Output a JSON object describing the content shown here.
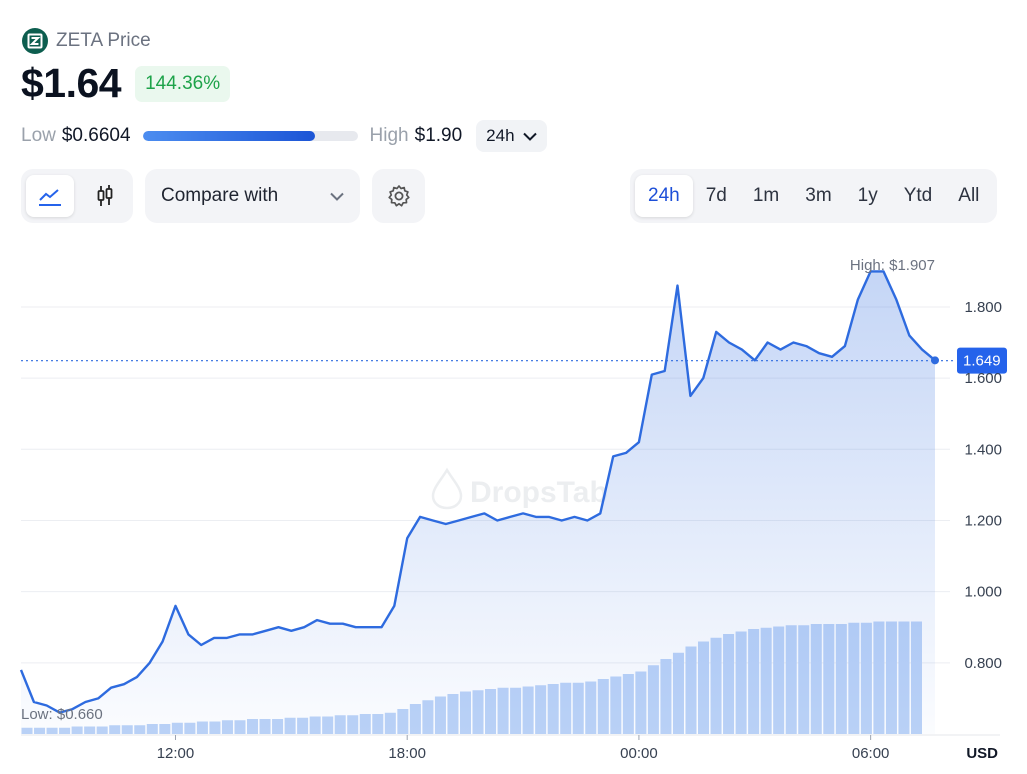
{
  "header": {
    "coin_name": "ZETA Price",
    "price": "$1.64",
    "change": "144.36%",
    "low_label": "Low",
    "low_value": "$0.6604",
    "high_label": "High",
    "high_value": "$1.90",
    "range_position": 0.8,
    "range_period": "24h"
  },
  "toolbar": {
    "compare_label": "Compare with",
    "ranges": [
      "24h",
      "7d",
      "1m",
      "3m",
      "1y",
      "Ytd",
      "All"
    ],
    "active_range": "24h"
  },
  "colors": {
    "accent": "#2563eb",
    "line": "#2e6bdf",
    "positive": "#1ea34a",
    "logo": "#0d5e4f"
  },
  "chart_data": {
    "type": "line",
    "title": "",
    "xlabel": "",
    "ylabel": "USD",
    "watermark": "DropsTab",
    "x_ticks": [
      "12:00",
      "18:00",
      "00:00",
      "06:00"
    ],
    "y_ticks": [
      "0.800",
      "1.000",
      "1.200",
      "1.400",
      "1.600",
      "1.800"
    ],
    "ylim": [
      0.6,
      1.96
    ],
    "current_value": "1.649",
    "high_label": "High: $1.907",
    "low_label": "Low: $0.660",
    "series": [
      {
        "name": "",
        "x": [
          "08:00",
          "08:20",
          "08:40",
          "09:00",
          "09:20",
          "09:40",
          "10:00",
          "10:20",
          "10:40",
          "11:00",
          "11:20",
          "11:40",
          "12:00",
          "12:20",
          "12:40",
          "13:00",
          "13:20",
          "13:40",
          "14:00",
          "14:20",
          "14:40",
          "15:00",
          "15:20",
          "15:40",
          "16:00",
          "16:20",
          "16:40",
          "17:00",
          "17:20",
          "17:40",
          "18:00",
          "18:20",
          "18:40",
          "19:00",
          "19:20",
          "19:40",
          "20:00",
          "20:20",
          "20:40",
          "21:00",
          "21:20",
          "21:40",
          "22:00",
          "22:20",
          "22:40",
          "23:00",
          "23:20",
          "23:40",
          "00:00",
          "00:20",
          "00:40",
          "01:00",
          "01:20",
          "01:40",
          "02:00",
          "02:20",
          "02:40",
          "03:00",
          "03:20",
          "03:40",
          "04:00",
          "04:20",
          "04:40",
          "05:00",
          "05:20",
          "05:40",
          "06:00",
          "06:20",
          "06:40",
          "07:00",
          "07:20",
          "07:40"
        ],
        "values": [
          0.78,
          0.69,
          0.68,
          0.66,
          0.67,
          0.69,
          0.7,
          0.73,
          0.74,
          0.76,
          0.8,
          0.86,
          0.96,
          0.88,
          0.85,
          0.87,
          0.87,
          0.88,
          0.88,
          0.89,
          0.9,
          0.89,
          0.9,
          0.92,
          0.91,
          0.91,
          0.9,
          0.9,
          0.9,
          0.96,
          1.15,
          1.21,
          1.2,
          1.19,
          1.2,
          1.21,
          1.22,
          1.2,
          1.21,
          1.22,
          1.21,
          1.21,
          1.2,
          1.21,
          1.2,
          1.22,
          1.38,
          1.39,
          1.42,
          1.61,
          1.62,
          1.86,
          1.55,
          1.6,
          1.73,
          1.7,
          1.68,
          1.65,
          1.7,
          1.68,
          1.7,
          1.69,
          1.67,
          1.66,
          1.69,
          1.82,
          1.9,
          1.9,
          1.82,
          1.72,
          1.68,
          1.65
        ]
      }
    ],
    "volume": [
      0.05,
      0.05,
      0.05,
      0.05,
      0.06,
      0.06,
      0.06,
      0.07,
      0.07,
      0.07,
      0.08,
      0.08,
      0.09,
      0.09,
      0.1,
      0.1,
      0.11,
      0.11,
      0.12,
      0.12,
      0.12,
      0.13,
      0.13,
      0.14,
      0.14,
      0.15,
      0.15,
      0.16,
      0.16,
      0.17,
      0.2,
      0.24,
      0.27,
      0.3,
      0.32,
      0.34,
      0.35,
      0.36,
      0.37,
      0.37,
      0.38,
      0.39,
      0.4,
      0.41,
      0.41,
      0.42,
      0.44,
      0.46,
      0.48,
      0.5,
      0.55,
      0.6,
      0.65,
      0.7,
      0.74,
      0.77,
      0.8,
      0.82,
      0.84,
      0.85,
      0.86,
      0.87,
      0.87,
      0.88,
      0.88,
      0.88,
      0.89,
      0.89,
      0.9,
      0.9,
      0.9,
      0.9
    ]
  }
}
